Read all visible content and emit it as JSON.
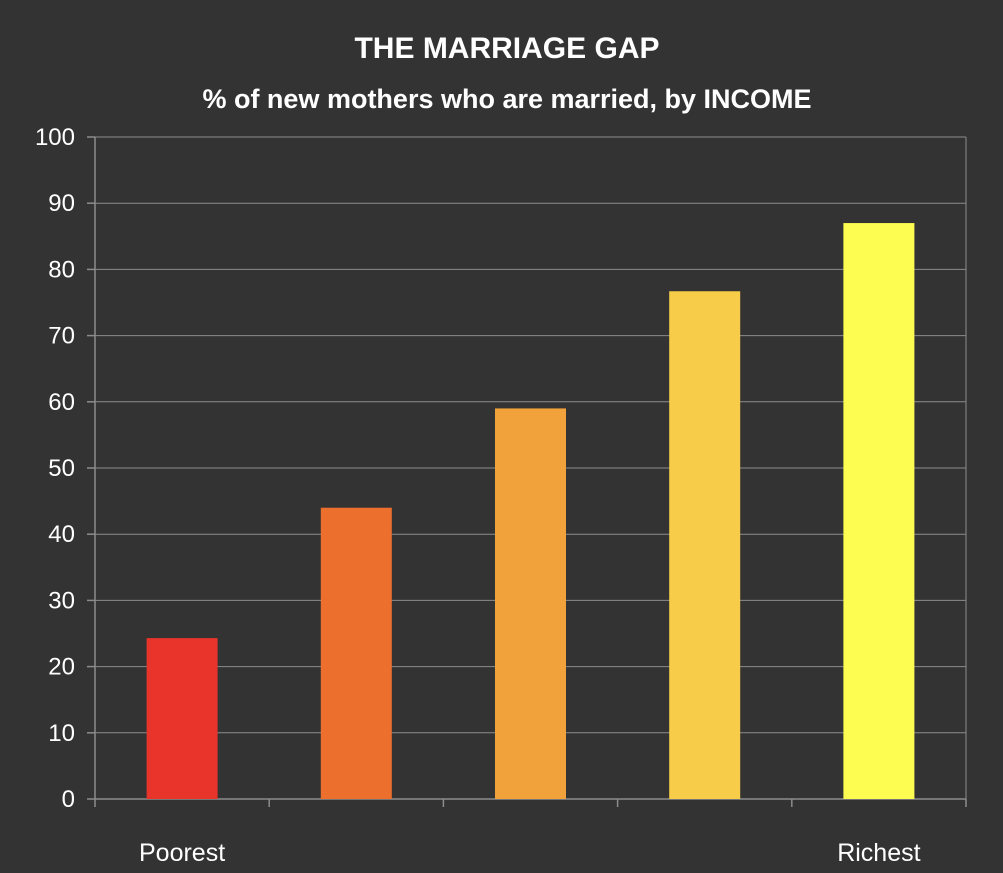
{
  "chart_data": {
    "type": "bar",
    "title": "THE MARRIAGE GAP",
    "subtitle": "% of new mothers who are married, by INCOME",
    "categories": [
      "Poorest",
      "",
      "",
      "",
      "Richest"
    ],
    "values": [
      24.3,
      44,
      59,
      76.7,
      87
    ],
    "bar_colors": [
      "#e8342a",
      "#ec6f2d",
      "#f1a23a",
      "#f7cc48",
      "#fdfc50"
    ],
    "xlabel": "",
    "ylabel": "",
    "ylim": [
      0,
      100
    ],
    "y_ticks": [
      "0",
      "10",
      "20",
      "30",
      "40",
      "50",
      "60",
      "70",
      "80",
      "90",
      "100"
    ],
    "grid": true,
    "legend": "none",
    "background_color": "#333333",
    "gridline_color": "#8c8c8c",
    "text_color": "#ffffff"
  }
}
